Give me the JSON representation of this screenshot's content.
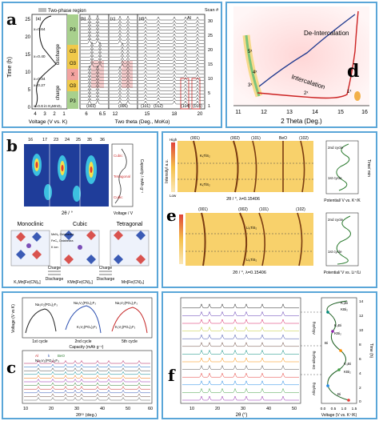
{
  "panel_a": {
    "label": "a",
    "legend": "Two-phase region",
    "time_label": "Time (h)",
    "time_ticks": [
      "25",
      "20",
      "15",
      "10",
      "5",
      "0"
    ],
    "voltage_label": "Voltage (V vs. K)",
    "voltage_ticks": [
      "4",
      "3",
      "2",
      "1"
    ],
    "state_labels": [
      "x=0.64",
      "x=0.40",
      "x=0.34",
      "x=0.27",
      "x=0.6 in KₓMnO₂"
    ],
    "process_labels": [
      "discharge",
      "charge"
    ],
    "phase_labels": [
      "P3",
      "O3",
      "O3",
      "X",
      "O3",
      "P3"
    ],
    "subpanels": [
      "(a)",
      "(b)",
      "(c)",
      "(d)"
    ],
    "two_theta_label": "Two theta (Deg., MoKα)",
    "two_theta_ticks": [
      "6",
      "6.5",
      "12",
      "15",
      "18",
      "20"
    ],
    "peak_labels": [
      "(003)",
      "(006)",
      "(101)",
      "(012)",
      "(104)",
      "(015)"
    ],
    "al_label": "Al",
    "scan_label": "Scan #",
    "scan_ticks": [
      "30",
      "25",
      "20",
      "15",
      "10",
      "5",
      "1"
    ]
  },
  "panel_d": {
    "label": "d",
    "deintercalation": "De-Intercalation",
    "intercalation": "Intercalation",
    "spots": [
      "5ˣ",
      "4ˣ",
      "3ˣ",
      "2ˣ",
      "1ˣ"
    ],
    "xlabel": "2 Theta (Deg.)",
    "xticks": [
      "11",
      "12",
      "13",
      "14",
      "15",
      "16"
    ]
  },
  "panel_b": {
    "label": "b",
    "top_ticks": [
      "16",
      "17",
      "23",
      "24",
      "25",
      "35",
      "36"
    ],
    "xlabel": "2θ / °",
    "ylabel_right": "Capacity / mAh g⁻¹",
    "phase_side": [
      "Cubic",
      "Tetragonal",
      "Cubic"
    ],
    "voltage_label": "Voltage / V",
    "structures": [
      "Monoclinic",
      "Cubic",
      "Tetragonal"
    ],
    "formulas": [
      "K₂Mn[Fe(CN)₆]",
      "KMn[Fe(CN)₆]",
      "Mn[Fe(CN)₆]"
    ],
    "arrow_labels": [
      "Charge",
      "Discharge",
      "Charge",
      "Discharge"
    ],
    "sites": [
      "MnN₆ Octahedra",
      "FeC₆ Octahedra",
      "K ion"
    ]
  },
  "panel_e": {
    "label": "e",
    "top_peaks": [
      "(001)",
      "(002)",
      "(101)",
      "BeO",
      "(102)"
    ],
    "bottom_peaks": [
      "(001)",
      "(002)",
      "(101)",
      "(102)"
    ],
    "top_species": [
      "KₓTiS₂",
      "KₓTiS₂"
    ],
    "bottom_species": [
      "LiₓTiS₂",
      "LiₓTiS₂"
    ],
    "intensity": "Intensity/ a.u.",
    "high": "High",
    "low": "Low",
    "xlabel": "2θ / °, λ=0.15406",
    "xlabel_potential_k": "Potential/ V vs. K⁺/K",
    "xlabel_potential_li": "Potential/ V vs. Li⁺/Li",
    "cycles": [
      "2nd cycle",
      "1st cycle",
      "2nd cycle",
      "1st cycle"
    ],
    "time_label": "Time/ min"
  },
  "panel_c": {
    "label": "c",
    "ylabel": "Voltage (V vs K)",
    "xlabel_top": "Capacity (mAh g⁻¹)",
    "cycles": [
      "1st cycle",
      "2nd cycle",
      "5th cycle"
    ],
    "formulas": [
      "Na₃V₂(PO₄)₂F₃",
      "Na₃V₂(PO₄)₂F₃",
      "K₃V₂(PO₄)₂F₃",
      "Na₃V₂(PO₄)₂F₃",
      "K₃V₂(PO₄)₂F₃"
    ],
    "legend": [
      "Al",
      "k",
      "BeO"
    ],
    "legend2": "Na₃V₂(PO₄)₂F₃",
    "xlabel": "2θᶜᵘ (deg.)",
    "xticks": [
      "10",
      "20",
      "30",
      "40",
      "50",
      "60"
    ]
  },
  "panel_f": {
    "label": "f",
    "xlabel": "2θ (°)",
    "xticks": [
      "10",
      "20",
      "30",
      "40",
      "50"
    ],
    "xlabel_right": "Voltage (V vs. K⁺/K)",
    "right_ticks": [
      "0.0",
      "0.5",
      "1.0",
      "1.5"
    ],
    "time_label": "Time (h)",
    "time_ticks": [
      "14",
      "12",
      "10",
      "8",
      "6",
      "4",
      "2",
      "0"
    ],
    "processes": [
      "Alloying",
      "De-alloying",
      "Alloying"
    ],
    "species": [
      "K₃Bi",
      "KBi₂",
      "K₃Bi",
      "KBi₂",
      "Bi",
      "K₃Bi",
      "KBi₂",
      "Bi"
    ]
  }
}
